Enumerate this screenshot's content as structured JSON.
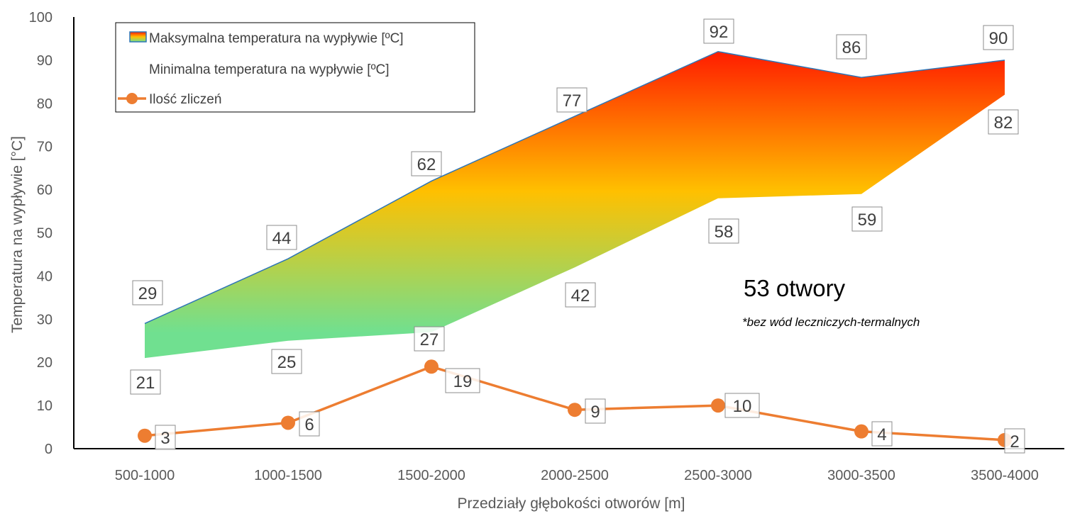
{
  "chart_data": {
    "type": "area",
    "categories": [
      "500-1000",
      "1000-1500",
      "1500-2000",
      "2000-2500",
      "2500-3000",
      "3000-3500",
      "3500-4000"
    ],
    "series": [
      {
        "name": "Maksymalna temperatura na wypływie [ºC]",
        "values": [
          29,
          44,
          62,
          77,
          92,
          86,
          90
        ]
      },
      {
        "name": "Minimalna temperatura na wypływie [ºC]",
        "values": [
          21,
          25,
          27,
          42,
          58,
          59,
          82
        ]
      },
      {
        "name": "Ilość zliczeń",
        "values": [
          3,
          6,
          19,
          9,
          10,
          4,
          2
        ]
      }
    ],
    "xlabel": "Przedziały głębokości otworów [m]",
    "ylabel": "Temperatura na wypływie [°C]",
    "ylim": [
      0,
      100
    ],
    "yticks": [
      0,
      10,
      20,
      30,
      40,
      50,
      60,
      70,
      80,
      90,
      100
    ],
    "grid": false,
    "legend_position": "top-left",
    "annotations": [
      "53 otwory",
      "*bez wód leczniczych-termalnych"
    ],
    "colors": {
      "gradient_top": "#ff1a00",
      "gradient_mid": "#ffc000",
      "gradient_bottom": "#70e090",
      "max_line": "#2e75b6",
      "count_series": "#ed7d31",
      "axis": "#000000",
      "tick_text": "#595959"
    }
  }
}
